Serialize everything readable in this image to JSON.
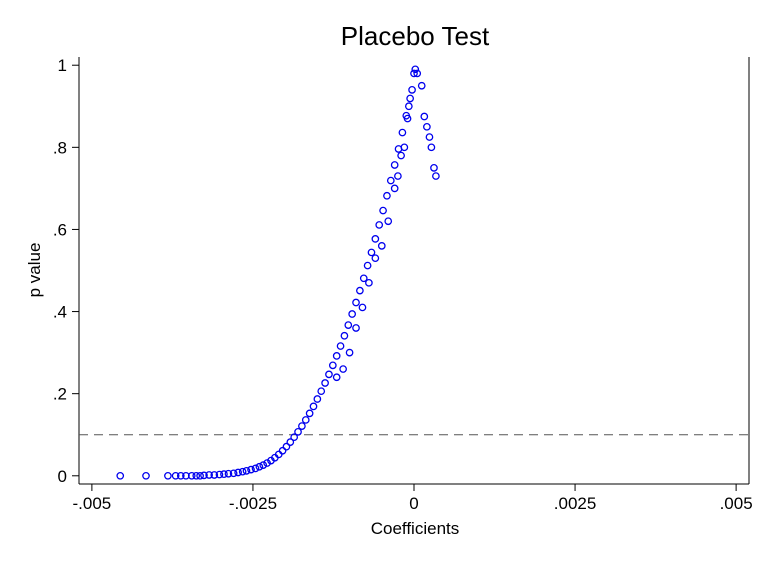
{
  "chart_data": {
    "type": "scatter",
    "title": "Placebo Test",
    "xlabel": "Coefficients",
    "ylabel": "p value",
    "xlim": [
      -0.0052,
      0.0052
    ],
    "ylim": [
      -0.02,
      1.02
    ],
    "x_ticks": [
      -0.005,
      -0.0025,
      0,
      0.0025,
      0.005
    ],
    "x_tick_labels": [
      "-.005",
      "-.0025",
      "0",
      ".0025",
      ".005"
    ],
    "y_ticks": [
      0,
      0.2,
      0.4,
      0.6,
      0.8,
      1
    ],
    "y_tick_labels": [
      "0",
      ".2",
      ".4",
      ".6",
      ".8",
      "1"
    ],
    "reference_line": {
      "y": 0.1,
      "style": "dashed",
      "color": "#555555"
    },
    "grid": false,
    "legend": "none",
    "marker": {
      "shape": "hollow-circle",
      "color": "#0000ee"
    },
    "series": [
      {
        "points": [
          [
            -0.00456,
            0.0
          ],
          [
            -0.00416,
            0.0
          ],
          [
            -0.00382,
            0.0
          ],
          [
            -0.0037,
            0.0
          ],
          [
            -0.00362,
            0.0
          ],
          [
            -0.00354,
            0.0
          ],
          [
            -0.00345,
            0.0
          ],
          [
            -0.00338,
            0.0
          ],
          [
            -0.00332,
            0.0
          ],
          [
            -0.00326,
            0.001
          ],
          [
            -0.00318,
            0.002
          ],
          [
            -0.0031,
            0.002
          ],
          [
            -0.00302,
            0.003
          ],
          [
            -0.00295,
            0.004
          ],
          [
            -0.00288,
            0.005
          ],
          [
            -0.0028,
            0.006
          ],
          [
            -0.00273,
            0.008
          ],
          [
            -0.00266,
            0.01
          ],
          [
            -0.0026,
            0.012
          ],
          [
            -0.00253,
            0.015
          ],
          [
            -0.00246,
            0.018
          ],
          [
            -0.0024,
            0.022
          ],
          [
            -0.00234,
            0.026
          ],
          [
            -0.00228,
            0.031
          ],
          [
            -0.00222,
            0.037
          ],
          [
            -0.00216,
            0.044
          ],
          [
            -0.0021,
            0.052
          ],
          [
            -0.00204,
            0.061
          ],
          [
            -0.00198,
            0.071
          ],
          [
            -0.00192,
            0.082
          ],
          [
            -0.00186,
            0.094
          ],
          [
            -0.0018,
            0.107
          ],
          [
            -0.00174,
            0.121
          ],
          [
            -0.00168,
            0.136
          ],
          [
            -0.00162,
            0.152
          ],
          [
            -0.00156,
            0.169
          ],
          [
            -0.0015,
            0.187
          ],
          [
            -0.00144,
            0.206
          ],
          [
            -0.00138,
            0.226
          ],
          [
            -0.00132,
            0.247
          ],
          [
            -0.00126,
            0.269
          ],
          [
            -0.0012,
            0.292
          ],
          [
            -0.00114,
            0.316
          ],
          [
            -0.00108,
            0.341
          ],
          [
            -0.00102,
            0.367
          ],
          [
            -0.00096,
            0.394
          ],
          [
            -0.0009,
            0.422
          ],
          [
            -0.00084,
            0.451
          ],
          [
            -0.00078,
            0.481
          ],
          [
            -0.00072,
            0.512
          ],
          [
            -0.00066,
            0.544
          ],
          [
            -0.0006,
            0.577
          ],
          [
            -0.00054,
            0.611
          ],
          [
            -0.00048,
            0.646
          ],
          [
            -0.00042,
            0.682
          ],
          [
            -0.00036,
            0.719
          ],
          [
            -0.0003,
            0.757
          ],
          [
            -0.00024,
            0.796
          ],
          [
            -0.00018,
            0.836
          ],
          [
            -0.00012,
            0.877
          ],
          [
            -6e-05,
            0.919
          ],
          [
            -3e-05,
            0.94
          ],
          [
            0.0,
            0.98
          ],
          [
            2e-05,
            0.99
          ],
          [
            5e-05,
            0.98
          ],
          [
            0.00012,
            0.95
          ],
          [
            0.00016,
            0.875
          ],
          [
            0.0002,
            0.85
          ],
          [
            0.00024,
            0.825
          ],
          [
            0.00027,
            0.8
          ],
          [
            0.00031,
            0.75
          ],
          [
            0.00034,
            0.73
          ],
          [
            -0.0012,
            0.24
          ],
          [
            -0.0011,
            0.26
          ],
          [
            -0.001,
            0.3
          ],
          [
            -0.0009,
            0.36
          ],
          [
            -0.0008,
            0.41
          ],
          [
            -0.0007,
            0.47
          ],
          [
            -0.0006,
            0.53
          ],
          [
            -0.0005,
            0.56
          ],
          [
            -0.0004,
            0.62
          ],
          [
            -0.0003,
            0.7
          ],
          [
            -0.00025,
            0.73
          ],
          [
            -0.0002,
            0.78
          ],
          [
            -0.00015,
            0.8
          ],
          [
            -0.0001,
            0.87
          ],
          [
            -8e-05,
            0.9
          ]
        ]
      }
    ]
  }
}
